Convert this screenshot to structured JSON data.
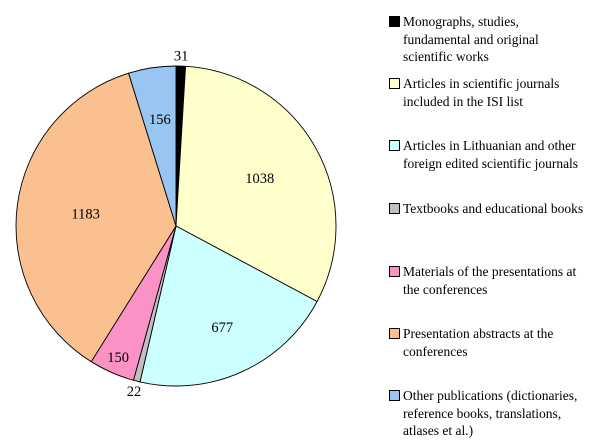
{
  "figure": {
    "background": "#FFFFFF",
    "title": ""
  },
  "chart_data": {
    "type": "pie",
    "title": "",
    "legend_position": "right",
    "start_angle_deg": 0,
    "direction": "clockwise",
    "total": 3257,
    "value_label_color": "#000000",
    "slice_border_color": "#000000",
    "slices": [
      {
        "name": "monographs",
        "label": "Monographs, studies,\nfundamental and original\nscientific works",
        "value": 31,
        "value_label": "31",
        "color": "#000000",
        "label_placement": "outside",
        "label_radius": 1.06
      },
      {
        "name": "isi-articles",
        "label": "Articles in scientific journals\nincluded in the ISI list",
        "value": 1038,
        "value_label": "1038",
        "color": "#FFFFCC",
        "label_placement": "inside",
        "label_radius": 0.6
      },
      {
        "name": "lithuanian-articles",
        "label": "Articles in Lithuanian and other\nforeign edited scientific journals",
        "value": 677,
        "value_label": "677",
        "color": "#CCFFFF",
        "label_placement": "inside",
        "label_radius": 0.7
      },
      {
        "name": "textbooks",
        "label": "Textbooks and educational books",
        "value": 22,
        "value_label": "22",
        "color": "#C0C0C0",
        "label_placement": "outside",
        "label_radius": 1.07
      },
      {
        "name": "conference-materials",
        "label": "Materials of the presentations at\nthe conferences",
        "value": 150,
        "value_label": "150",
        "color": "#FA92C5",
        "label_placement": "inside",
        "label_radius": 0.9
      },
      {
        "name": "presentation-abstracts",
        "label": "Presentation abstracts at the\nconferences",
        "value": 1183,
        "value_label": "1183",
        "color": "#FAC090",
        "label_placement": "inside",
        "label_radius": 0.57
      },
      {
        "name": "other-publications",
        "label": "Other publications (dictionaries,\nreference books, translations,\natlases et al.)",
        "value": 156,
        "value_label": "156",
        "color": "#99C5F2",
        "label_placement": "inside",
        "label_radius": 0.67
      }
    ]
  }
}
